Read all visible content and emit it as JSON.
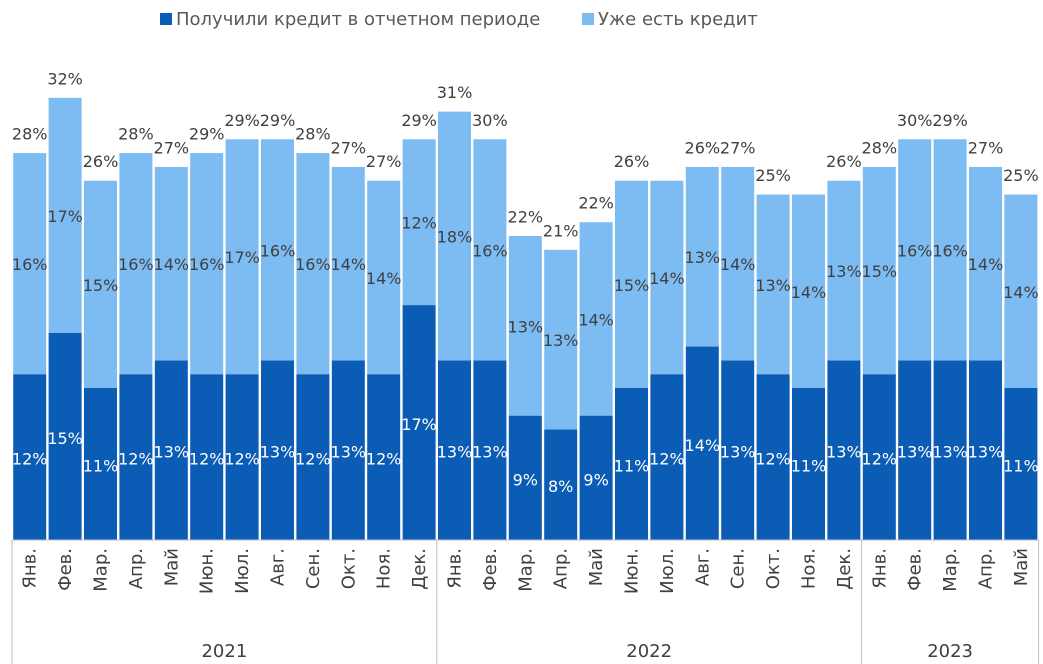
{
  "chart_data": {
    "type": "stacked_bar",
    "groups": [
      {
        "name": "2021",
        "categories": [
          "Янв.",
          "Фев.",
          "Мар.",
          "Апр.",
          "Май",
          "Июн.",
          "Июл.",
          "Авг.",
          "Сен.",
          "Окт.",
          "Ноя.",
          "Дек."
        ]
      },
      {
        "name": "2022",
        "categories": [
          "Янв.",
          "Фев.",
          "Мар.",
          "Апр.",
          "Май",
          "Июн.",
          "Июл.",
          "Авг.",
          "Сен.",
          "Окт.",
          "Ноя.",
          "Дек."
        ]
      },
      {
        "name": "2023",
        "categories": [
          "Янв.",
          "Фев.",
          "Мар.",
          "Апр.",
          "Май"
        ]
      }
    ],
    "series": [
      {
        "name": "Получили кредит в отчетном периоде",
        "color": "#0b5cb5",
        "values": [
          12,
          15,
          11,
          12,
          13,
          12,
          12,
          13,
          12,
          13,
          12,
          17,
          13,
          13,
          9,
          8,
          9,
          11,
          12,
          14,
          13,
          12,
          11,
          13,
          12,
          13,
          13,
          13,
          11
        ],
        "value_labels": [
          "12%",
          "15%",
          "11%",
          "12%",
          "13%",
          "12%",
          "12%",
          "13%",
          "12%",
          "13%",
          "12%",
          "17%",
          "13%",
          "13%",
          "9%",
          "8%",
          "9%",
          "11%",
          "12%",
          "14%",
          "13%",
          "12%",
          "11%",
          "13%",
          "12%",
          "13%",
          "13%",
          "13%",
          "11%"
        ]
      },
      {
        "name": "Уже есть кредит",
        "color": "#7dbcf3",
        "values": [
          16,
          17,
          15,
          16,
          14,
          16,
          17,
          16,
          16,
          14,
          14,
          12,
          18,
          16,
          13,
          13,
          14,
          15,
          14,
          13,
          14,
          13,
          14,
          13,
          15,
          16,
          16,
          14,
          14
        ],
        "value_labels": [
          "16%",
          "17%",
          "15%",
          "16%",
          "14%",
          "16%",
          "17%",
          "16%",
          "16%",
          "14%",
          "14%",
          "12%",
          "18%",
          "16%",
          "13%",
          "13%",
          "14%",
          "15%",
          "14%",
          "13%",
          "14%",
          "13%",
          "14%",
          "13%",
          "15%",
          "16%",
          "16%",
          "14%",
          "14%"
        ]
      }
    ],
    "totals": [
      28,
      32,
      26,
      28,
      27,
      29,
      29,
      29,
      28,
      27,
      27,
      29,
      31,
      30,
      22,
      21,
      22,
      26,
      null,
      26,
      27,
      25,
      null,
      26,
      28,
      30,
      29,
      27,
      25
    ],
    "total_labels": [
      "28%",
      "32%",
      "26%",
      "28%",
      "27%",
      "29%",
      "29%",
      "29%",
      "28%",
      "27%",
      "27%",
      "29%",
      "31%",
      "30%",
      "22%",
      "21%",
      "22%",
      "26%",
      null,
      "26%",
      "27%",
      "25%",
      null,
      "26%",
      "28%",
      "30%",
      "29%",
      "27%",
      "25%"
    ],
    "ylim": [
      0,
      33
    ]
  }
}
